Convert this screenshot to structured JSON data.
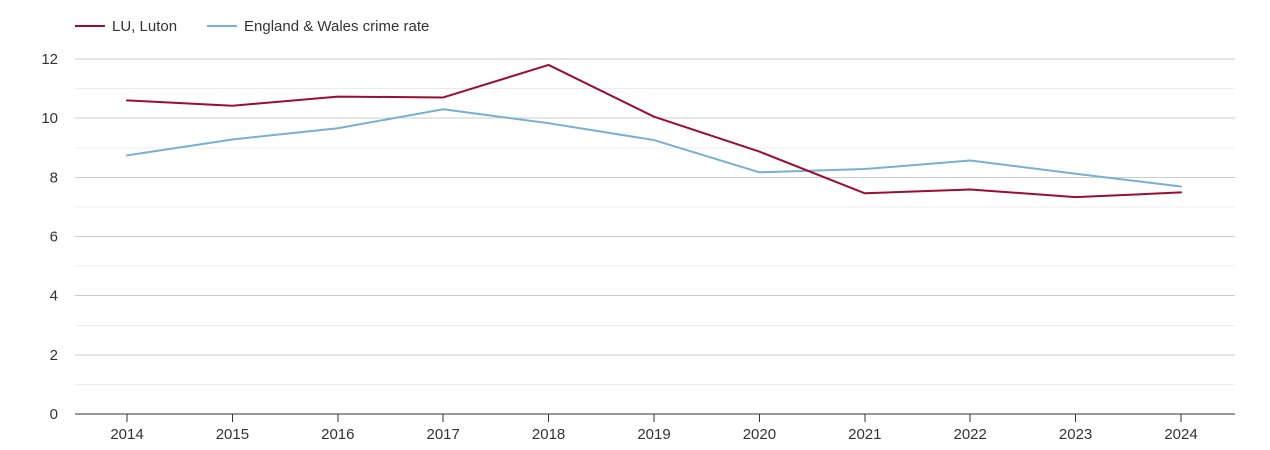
{
  "chart_data": {
    "type": "line",
    "title": "",
    "xlabel": "",
    "ylabel": "",
    "x": [
      2014,
      2015,
      2016,
      2017,
      2018,
      2019,
      2020,
      2021,
      2022,
      2023,
      2024
    ],
    "x_tick_labels": [
      "2014",
      "2015",
      "2016",
      "2017",
      "2018",
      "2019",
      "2020",
      "2021",
      "2022",
      "2023",
      "2024"
    ],
    "ylim": [
      0,
      12
    ],
    "y_ticks": [
      0,
      2,
      4,
      6,
      8,
      10,
      12
    ],
    "y_tick_labels": [
      "0",
      "2",
      "4",
      "6",
      "8",
      "10",
      "12"
    ],
    "grid": true,
    "legend_position": "top-left",
    "series": [
      {
        "name": "LU, Luton",
        "color": "#9b0d33",
        "values": [
          10.6,
          10.42,
          10.73,
          10.7,
          11.8,
          10.05,
          8.87,
          7.46,
          7.59,
          7.33,
          7.49
        ]
      },
      {
        "name": "England & Wales crime rate",
        "color": "#78b0d3",
        "values": [
          8.74,
          9.28,
          9.66,
          10.3,
          9.83,
          9.26,
          8.17,
          8.28,
          8.57,
          8.12,
          7.69
        ]
      }
    ]
  }
}
